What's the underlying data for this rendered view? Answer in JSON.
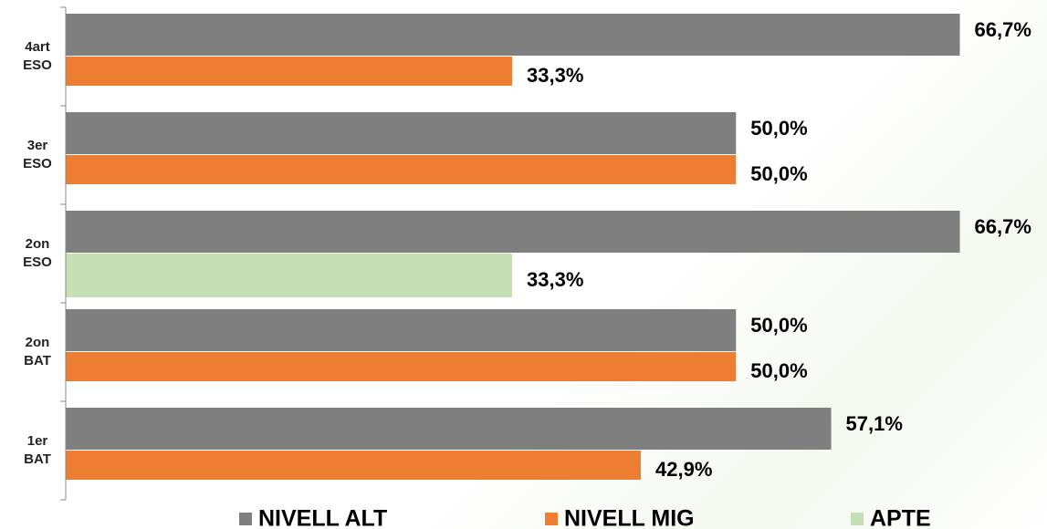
{
  "chart_data": {
    "type": "hbar",
    "categories": [
      "4art ESO",
      "3er ESO",
      "2on ESO",
      "2on BAT",
      "1er BAT"
    ],
    "series": [
      {
        "name": "NIVELL ALT",
        "color": "#7f7f7f",
        "values": [
          66.7,
          50.0,
          66.7,
          50.0,
          57.1
        ],
        "value_labels": [
          "66,7%",
          "50,0%",
          "66,7%",
          "50,0%",
          "57,1%"
        ]
      },
      {
        "name": "NIVELL MIG",
        "color": "#ed7d31",
        "values": [
          33.3,
          50.0,
          null,
          50.0,
          42.9
        ],
        "value_labels": [
          "33,3%",
          "50,0%",
          null,
          "50,0%",
          "42,9%"
        ]
      },
      {
        "name": "APTE",
        "color": "#c5e0b4",
        "values": [
          null,
          null,
          33.3,
          null,
          null
        ],
        "value_labels": [
          null,
          null,
          "33,3%",
          null,
          null
        ]
      }
    ],
    "xlim": [
      0,
      70
    ],
    "legend": "bottom"
  }
}
